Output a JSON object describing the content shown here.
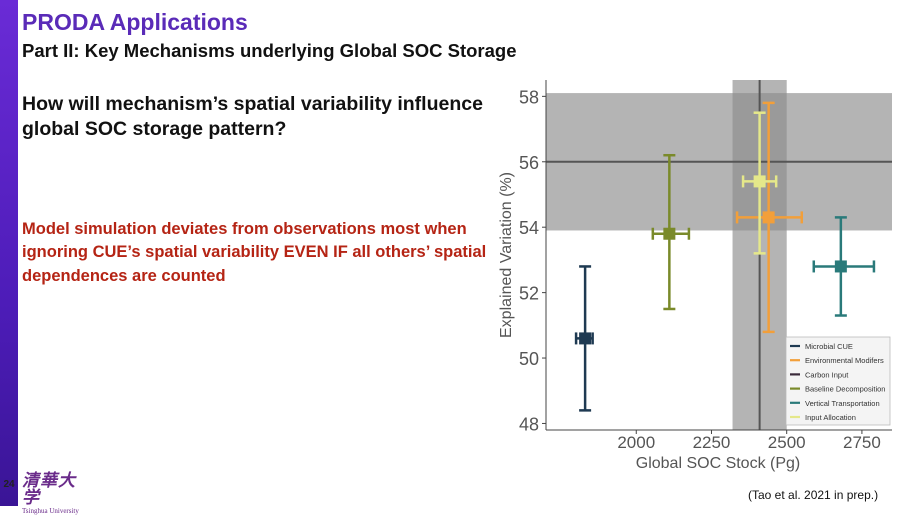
{
  "slide": {
    "title": "PRODA Applications",
    "subtitle": "Part II: Key Mechanisms underlying Global SOC Storage",
    "question": "How will mechanism’s spatial variability influence global SOC storage pattern?",
    "finding": "Model simulation deviates from observations most when ignoring CUE’s spatial variability EVEN IF all others’ spatial dependences are counted",
    "page_number": "24",
    "logo_chinese": "清華大学",
    "logo_english": "Tsinghua University",
    "citation": "(Tao et al. 2021 in prep.)"
  },
  "colors": {
    "title": "#5a2bb8",
    "finding": "#b52414",
    "left_bar": "#5b23c8"
  },
  "chart_data": {
    "type": "scatter",
    "xlabel": "Global SOC Stock (Pg)",
    "ylabel": "Explained Variation (%)",
    "xlim": [
      1700,
      2850
    ],
    "ylim": [
      47.8,
      58.5
    ],
    "xticks": [
      2000,
      2250,
      2500,
      2750
    ],
    "yticks": [
      48,
      50,
      52,
      54,
      56,
      58
    ],
    "observation": {
      "x_center": 2410,
      "x_low": 2320,
      "x_high": 2500,
      "y_center": 56,
      "y_low": 53.9,
      "y_high": 58.1
    },
    "legend_position": "bottom-right",
    "series": [
      {
        "name": "Microbial CUE",
        "color": "#1f3a52",
        "x": 1830,
        "xerr_low": 1800,
        "xerr_high": 1855,
        "y": 50.6,
        "yerr_low": 48.4,
        "yerr_high": 52.8
      },
      {
        "name": "Environmental Modifers",
        "color": "#f29f3a",
        "x": 2440,
        "xerr_low": 2335,
        "xerr_high": 2550,
        "y": 54.3,
        "yerr_low": 50.8,
        "yerr_high": 57.8
      },
      {
        "name": "Carbon Input",
        "color": "#3a2a3a",
        "x": null,
        "y": null
      },
      {
        "name": "Baseline Decomposition",
        "color": "#7a8a2a",
        "x": 2110,
        "xerr_low": 2055,
        "xerr_high": 2175,
        "y": 53.8,
        "yerr_low": 51.5,
        "yerr_high": 56.2
      },
      {
        "name": "Vertical Transportation",
        "color": "#2a7a7a",
        "x": 2680,
        "xerr_low": 2590,
        "xerr_high": 2790,
        "y": 52.8,
        "yerr_low": 51.3,
        "yerr_high": 54.3
      },
      {
        "name": "Input Allocation",
        "color": "#e5e88a",
        "x": 2410,
        "xerr_low": 2355,
        "xerr_high": 2465,
        "y": 55.4,
        "yerr_low": 53.2,
        "yerr_high": 57.5
      }
    ]
  }
}
